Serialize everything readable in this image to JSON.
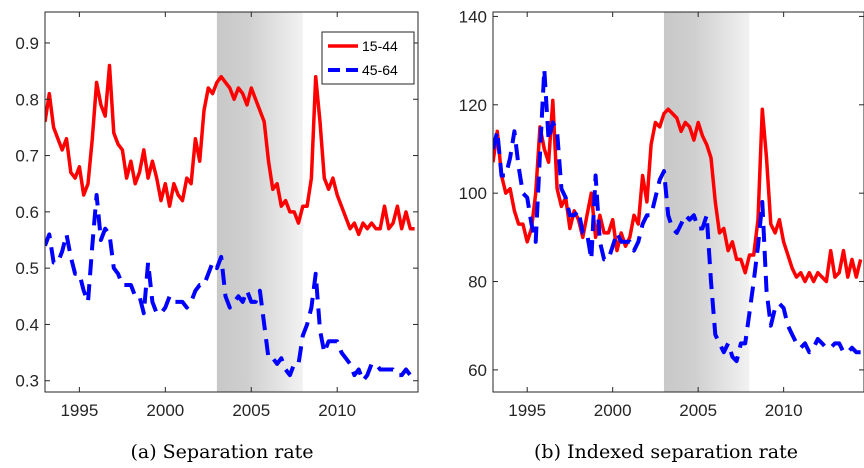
{
  "chart_data": [
    {
      "type": "line",
      "caption": "(a) Separation rate",
      "xlim": [
        1993,
        2014.7
      ],
      "ylim": [
        0.28,
        0.955
      ],
      "xticks": [
        1995,
        2000,
        2005,
        2010
      ],
      "yticks": [
        0.3,
        0.4,
        0.5,
        0.6,
        0.7,
        0.8,
        0.9
      ],
      "ytick_labels": [
        "0.3",
        "0.4",
        "0.5",
        "0.6",
        "0.7",
        "0.8",
        "0.9"
      ],
      "shaded_region": [
        2003,
        2008
      ],
      "legend_position": "top-right",
      "series": [
        {
          "name": "15-44",
          "color": "#ff0000",
          "style": "solid",
          "x": [
            1993.0,
            1993.25,
            1993.5,
            1993.75,
            1994.0,
            1994.25,
            1994.5,
            1994.75,
            1995.0,
            1995.25,
            1995.5,
            1995.75,
            1996.0,
            1996.25,
            1996.5,
            1996.75,
            1997.0,
            1997.25,
            1997.5,
            1997.75,
            1998.0,
            1998.25,
            1998.5,
            1998.75,
            1999.0,
            1999.25,
            1999.5,
            1999.75,
            2000.0,
            2000.25,
            2000.5,
            2000.75,
            2001.0,
            2001.25,
            2001.5,
            2001.75,
            2002.0,
            2002.25,
            2002.5,
            2002.75,
            2003.0,
            2003.25,
            2003.5,
            2003.75,
            2004.0,
            2004.25,
            2004.5,
            2004.75,
            2005.0,
            2005.25,
            2005.5,
            2005.75,
            2006.0,
            2006.25,
            2006.5,
            2006.75,
            2007.0,
            2007.25,
            2007.5,
            2007.75,
            2008.0,
            2008.25,
            2008.5,
            2008.75,
            2009.0,
            2009.25,
            2009.5,
            2009.75,
            2010.0,
            2010.25,
            2010.5,
            2010.75,
            2011.0,
            2011.25,
            2011.5,
            2011.75,
            2012.0,
            2012.25,
            2012.5,
            2012.75,
            2013.0,
            2013.25,
            2013.5,
            2013.75,
            2014.0,
            2014.25,
            2014.5
          ],
          "values": [
            0.76,
            0.81,
            0.75,
            0.73,
            0.71,
            0.73,
            0.67,
            0.66,
            0.68,
            0.63,
            0.65,
            0.73,
            0.83,
            0.79,
            0.77,
            0.86,
            0.74,
            0.72,
            0.71,
            0.66,
            0.69,
            0.65,
            0.67,
            0.71,
            0.66,
            0.69,
            0.66,
            0.62,
            0.65,
            0.61,
            0.65,
            0.63,
            0.62,
            0.66,
            0.65,
            0.73,
            0.69,
            0.78,
            0.82,
            0.81,
            0.83,
            0.84,
            0.83,
            0.82,
            0.8,
            0.82,
            0.81,
            0.79,
            0.82,
            0.8,
            0.78,
            0.76,
            0.69,
            0.64,
            0.65,
            0.61,
            0.62,
            0.6,
            0.6,
            0.58,
            0.61,
            0.61,
            0.66,
            0.84,
            0.76,
            0.66,
            0.64,
            0.66,
            0.63,
            0.61,
            0.59,
            0.57,
            0.58,
            0.56,
            0.58,
            0.57,
            0.58,
            0.57,
            0.57,
            0.61,
            0.57,
            0.58,
            0.61,
            0.57,
            0.6,
            0.57,
            0.57
          ]
        },
        {
          "name": "45-64",
          "color": "#0000ff",
          "style": "dashed",
          "x": [
            1993.0,
            1993.25,
            1993.5,
            1993.75,
            1994.0,
            1994.25,
            1994.5,
            1994.75,
            1995.0,
            1995.25,
            1995.5,
            1995.75,
            1996.0,
            1996.25,
            1996.5,
            1996.75,
            1997.0,
            1997.25,
            1997.5,
            1997.75,
            1998.0,
            1998.25,
            1998.5,
            1998.75,
            1999.0,
            1999.25,
            1999.5,
            1999.75,
            2000.0,
            2000.25,
            2000.5,
            2000.75,
            2001.0,
            2001.25,
            2001.5,
            2001.75,
            2002.0,
            2002.25,
            2002.5,
            2002.75,
            2003.0,
            2003.25,
            2003.5,
            2003.75,
            2004.0,
            2004.25,
            2004.5,
            2004.75,
            2005.0,
            2005.25,
            2005.5,
            2005.75,
            2006.0,
            2006.25,
            2006.5,
            2006.75,
            2007.0,
            2007.25,
            2007.5,
            2007.75,
            2008.0,
            2008.25,
            2008.5,
            2008.75,
            2009.0,
            2009.25,
            2009.5,
            2009.75,
            2010.0,
            2010.25,
            2010.5,
            2010.75,
            2011.0,
            2011.25,
            2011.5,
            2011.75,
            2012.0,
            2012.25,
            2012.5,
            2012.75,
            2013.0,
            2013.25,
            2013.5,
            2013.75,
            2014.0,
            2014.25,
            2014.5
          ],
          "values": [
            0.54,
            0.56,
            0.51,
            0.51,
            0.53,
            0.56,
            0.52,
            0.49,
            0.49,
            0.46,
            0.44,
            0.54,
            0.63,
            0.55,
            0.57,
            0.56,
            0.5,
            0.49,
            0.47,
            0.47,
            0.47,
            0.45,
            0.45,
            0.42,
            0.51,
            0.44,
            0.42,
            0.42,
            0.43,
            0.45,
            0.44,
            0.44,
            0.44,
            0.43,
            0.44,
            0.46,
            0.47,
            0.47,
            0.49,
            0.51,
            0.5,
            0.52,
            0.45,
            0.43,
            0.44,
            0.45,
            0.44,
            0.46,
            0.44,
            0.44,
            0.46,
            0.4,
            0.34,
            0.34,
            0.33,
            0.34,
            0.32,
            0.31,
            0.33,
            0.33,
            0.38,
            0.4,
            0.43,
            0.49,
            0.39,
            0.35,
            0.37,
            0.37,
            0.37,
            0.35,
            0.34,
            0.33,
            0.31,
            0.32,
            0.3,
            0.31,
            0.33,
            0.33,
            0.32,
            0.32,
            0.32,
            0.32,
            0.31,
            0.31,
            0.32,
            0.31,
            0.31
          ]
        }
      ]
    },
    {
      "type": "line",
      "caption": "(b) Indexed separation rate",
      "xlim": [
        1993,
        2014.7
      ],
      "ylim": [
        55,
        141
      ],
      "xticks": [
        1995,
        2000,
        2005,
        2010
      ],
      "yticks": [
        60,
        80,
        100,
        120,
        140
      ],
      "ytick_labels": [
        "60",
        "80",
        "100",
        "120",
        "140"
      ],
      "shaded_region": [
        2003,
        2008
      ],
      "series": [
        {
          "name": "15-44",
          "color": "#ff0000",
          "style": "solid",
          "x": [
            1993.0,
            1993.25,
            1993.5,
            1993.75,
            1994.0,
            1994.25,
            1994.5,
            1994.75,
            1995.0,
            1995.25,
            1995.5,
            1995.75,
            1996.0,
            1996.25,
            1996.5,
            1996.75,
            1997.0,
            1997.25,
            1997.5,
            1997.75,
            1998.0,
            1998.25,
            1998.5,
            1998.75,
            1999.0,
            1999.25,
            1999.5,
            1999.75,
            2000.0,
            2000.25,
            2000.5,
            2000.75,
            2001.0,
            2001.25,
            2001.5,
            2001.75,
            2002.0,
            2002.25,
            2002.5,
            2002.75,
            2003.0,
            2003.25,
            2003.5,
            2003.75,
            2004.0,
            2004.25,
            2004.5,
            2004.75,
            2005.0,
            2005.25,
            2005.5,
            2005.75,
            2006.0,
            2006.25,
            2006.5,
            2006.75,
            2007.0,
            2007.25,
            2007.5,
            2007.75,
            2008.0,
            2008.25,
            2008.5,
            2008.75,
            2009.0,
            2009.25,
            2009.5,
            2009.75,
            2010.0,
            2010.25,
            2010.5,
            2010.75,
            2011.0,
            2011.25,
            2011.5,
            2011.75,
            2012.0,
            2012.25,
            2012.5,
            2012.75,
            2013.0,
            2013.25,
            2013.5,
            2013.75,
            2014.0,
            2014.25,
            2014.5
          ],
          "values": [
            107,
            114,
            104,
            100,
            101,
            96,
            93,
            93,
            89,
            92,
            100,
            115,
            110,
            107,
            121,
            101,
            97,
            99,
            92,
            96,
            94,
            90,
            95,
            100,
            90,
            95,
            91,
            91,
            94,
            87,
            91,
            88,
            90,
            95,
            93,
            104,
            98,
            111,
            116,
            115,
            118,
            119,
            118,
            117,
            114,
            116,
            115,
            112,
            116,
            113,
            111,
            108,
            98,
            91,
            92,
            87,
            89,
            85,
            85,
            82,
            86,
            86,
            94,
            119,
            108,
            93,
            91,
            94,
            89,
            86,
            83,
            81,
            82,
            80,
            82,
            80,
            82,
            81,
            80,
            87,
            81,
            82,
            87,
            81,
            85,
            81,
            85
          ]
        },
        {
          "name": "45-64",
          "color": "#0000ff",
          "style": "dashed",
          "x": [
            1993.0,
            1993.25,
            1993.5,
            1993.75,
            1994.0,
            1994.25,
            1994.5,
            1994.75,
            1995.0,
            1995.25,
            1995.5,
            1995.75,
            1996.0,
            1996.25,
            1996.5,
            1996.75,
            1997.0,
            1997.25,
            1997.5,
            1997.75,
            1998.0,
            1998.25,
            1998.5,
            1998.75,
            1999.0,
            1999.25,
            1999.5,
            1999.75,
            2000.0,
            2000.25,
            2000.5,
            2000.75,
            2001.0,
            2001.25,
            2001.5,
            2001.75,
            2002.0,
            2002.25,
            2002.5,
            2002.75,
            2003.0,
            2003.25,
            2003.5,
            2003.75,
            2004.0,
            2004.25,
            2004.5,
            2004.75,
            2005.0,
            2005.25,
            2005.5,
            2005.75,
            2006.0,
            2006.25,
            2006.5,
            2006.75,
            2007.0,
            2007.25,
            2007.5,
            2007.75,
            2008.0,
            2008.25,
            2008.5,
            2008.75,
            2009.0,
            2009.25,
            2009.5,
            2009.75,
            2010.0,
            2010.25,
            2010.5,
            2010.75,
            2011.0,
            2011.25,
            2011.5,
            2011.75,
            2012.0,
            2012.25,
            2012.5,
            2012.75,
            2013.0,
            2013.25,
            2013.5,
            2013.75,
            2014.0,
            2014.25,
            2014.5
          ],
          "values": [
            110,
            114,
            104,
            104,
            108,
            114,
            106,
            100,
            99,
            93,
            89,
            109,
            128,
            112,
            116,
            114,
            101,
            99,
            95,
            95,
            96,
            91,
            91,
            85,
            104,
            89,
            85,
            85,
            88,
            91,
            89,
            89,
            89,
            87,
            89,
            93,
            95,
            95,
            99,
            103,
            105,
            95,
            92,
            91,
            93,
            95,
            94,
            95,
            92,
            92,
            95,
            80,
            68,
            66,
            64,
            66,
            63,
            62,
            66,
            66,
            73,
            80,
            88,
            98,
            78,
            70,
            74,
            75,
            74,
            70,
            68,
            66,
            65,
            66,
            64,
            65,
            67,
            66,
            65,
            65,
            66,
            66,
            64,
            64,
            65,
            64,
            64
          ]
        }
      ]
    }
  ]
}
